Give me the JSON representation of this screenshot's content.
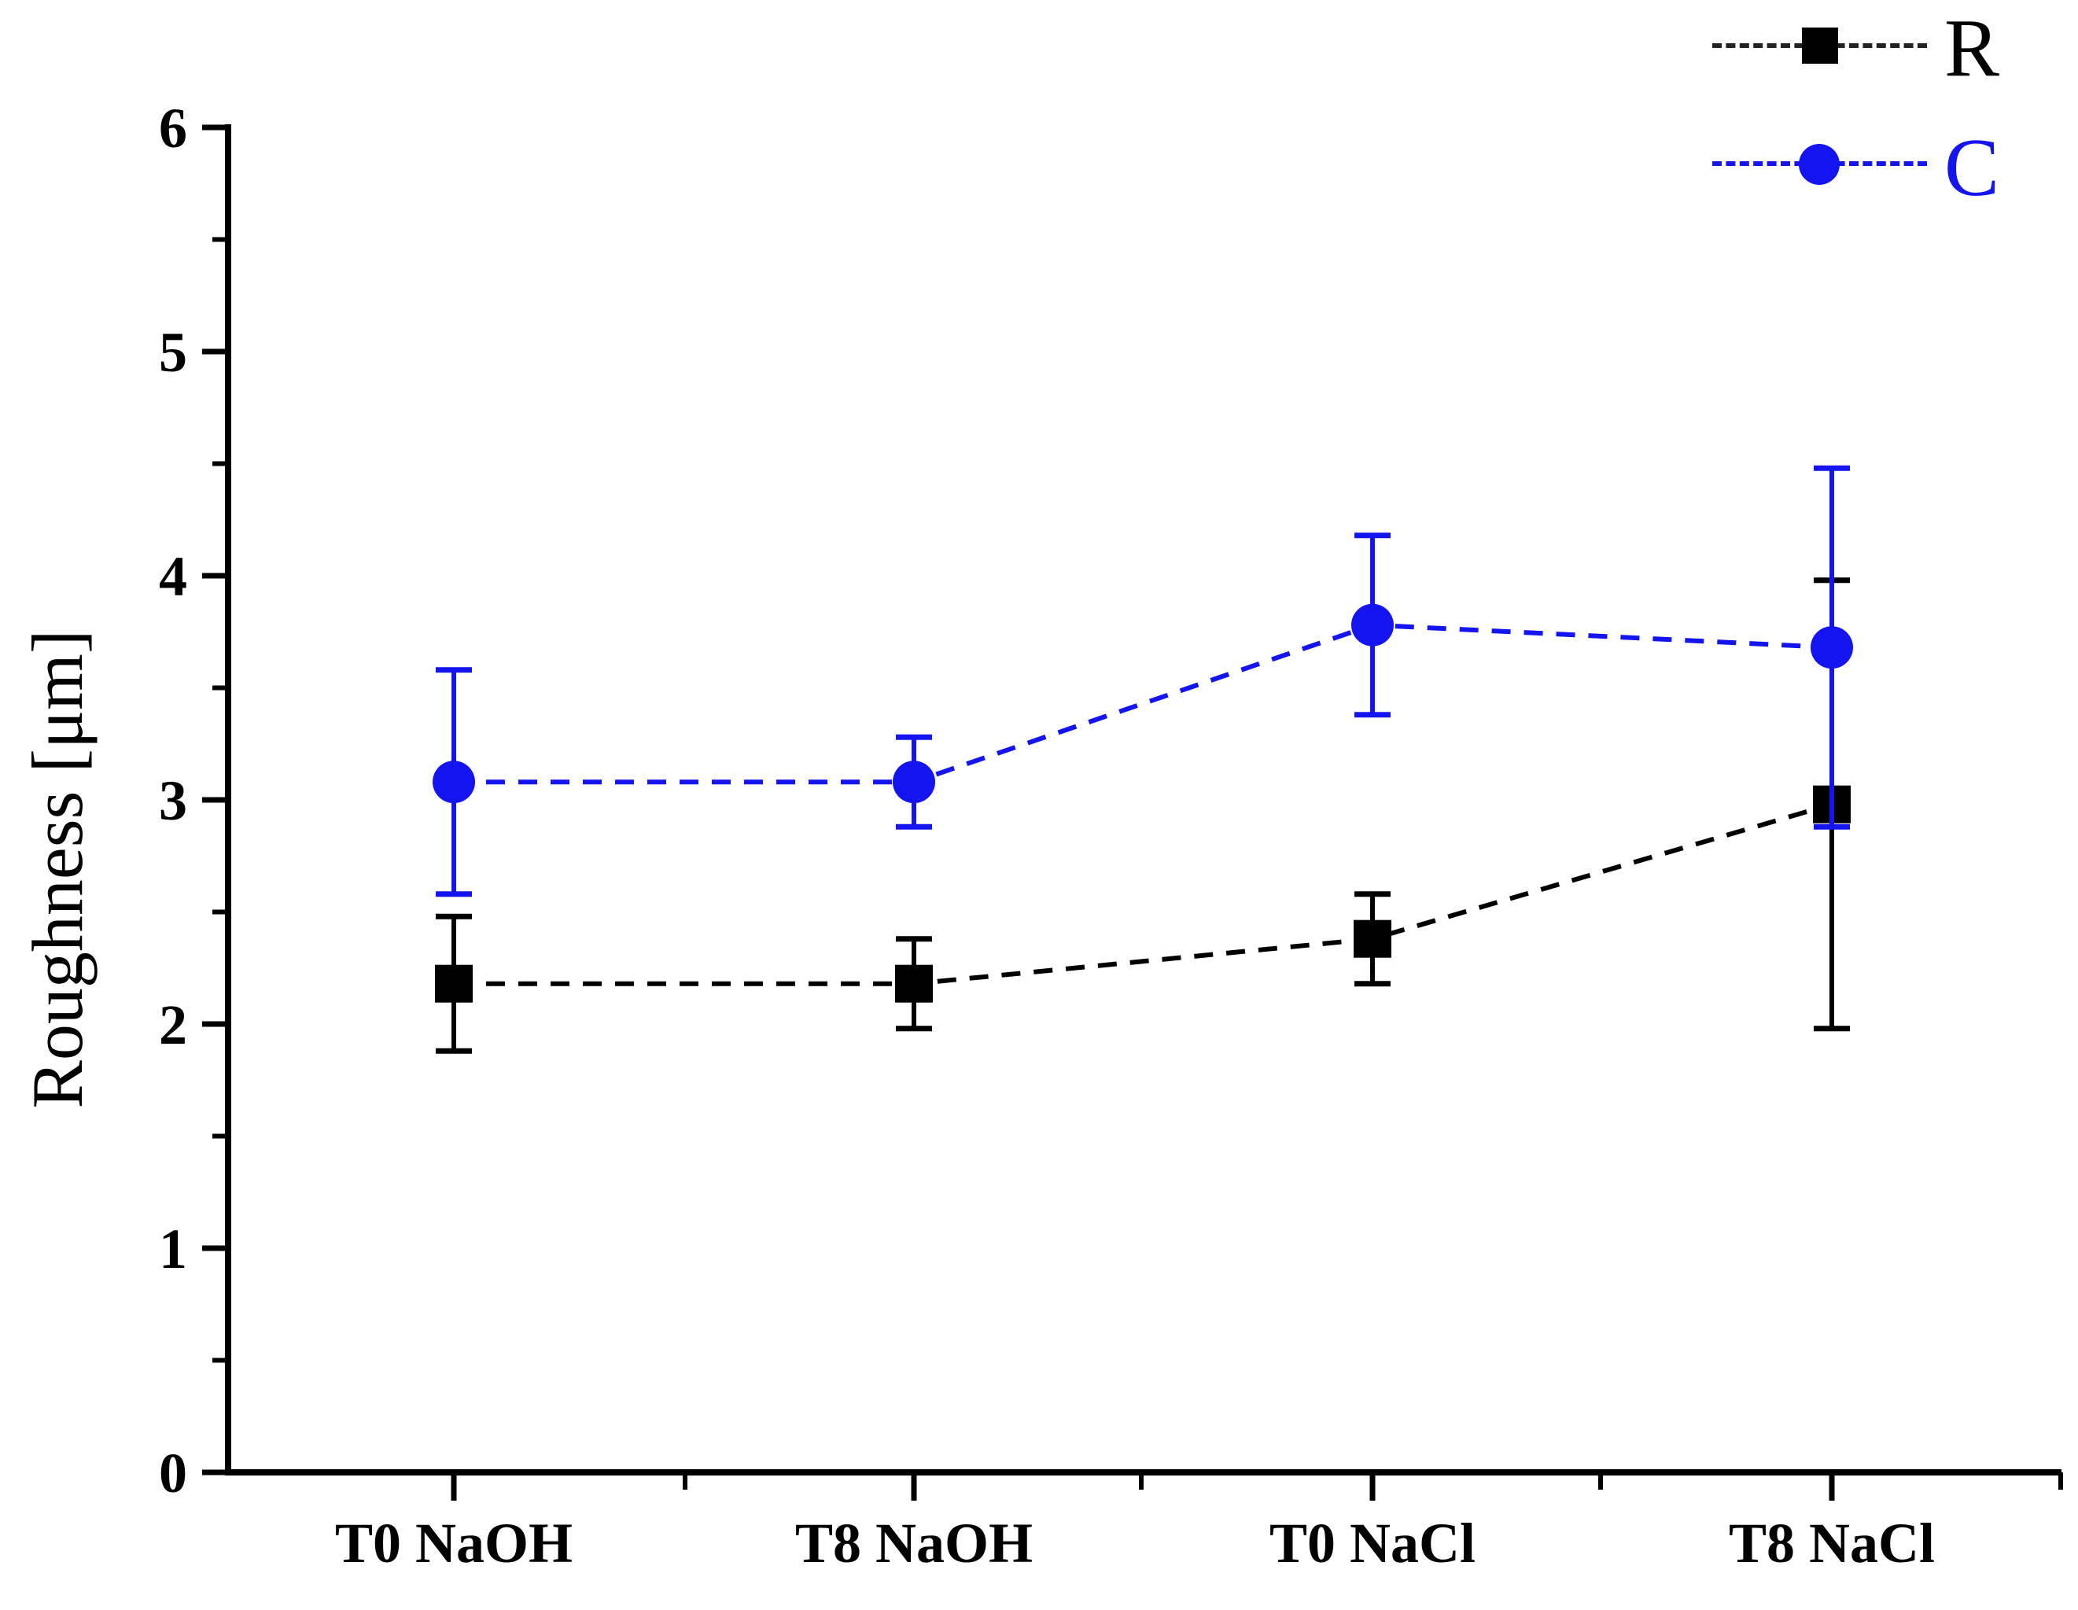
{
  "chart_data": {
    "type": "line",
    "title": "",
    "xlabel": "",
    "ylabel": "Roughness [μm]",
    "categories": [
      "T0 NaOH",
      "T8 NaOH",
      "T0 NaCl",
      "T8 NaCl"
    ],
    "series": [
      {
        "name": "R",
        "marker": "square",
        "color": "#000000",
        "values": [
          2.18,
          2.18,
          2.38,
          2.98
        ],
        "errors": [
          0.3,
          0.2,
          0.2,
          1.0
        ]
      },
      {
        "name": "C",
        "marker": "circle",
        "color": "#1414f0",
        "values": [
          3.08,
          3.08,
          3.78,
          3.68
        ],
        "errors": [
          0.5,
          0.2,
          0.4,
          0.8
        ]
      }
    ],
    "ylim": [
      0,
      6
    ],
    "yticks": [
      0,
      1,
      2,
      3,
      4,
      5,
      6
    ],
    "ytick_labels": [
      "0",
      "1",
      "2",
      "3",
      "4",
      "5",
      "6"
    ],
    "yminor_step": 0.5,
    "line_style": "dashed",
    "grid": false,
    "legend_position": "top-right",
    "error_bars": true
  },
  "colors": {
    "background": "#ffffff",
    "axis": "#000000",
    "series_R": "#000000",
    "series_C": "#1414f0"
  }
}
